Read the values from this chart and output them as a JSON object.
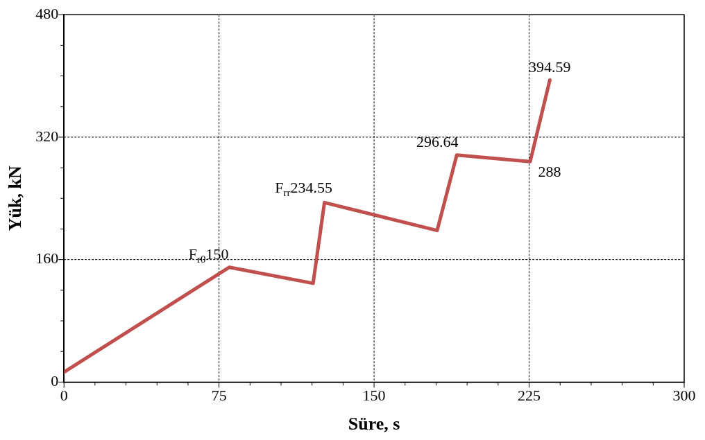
{
  "chart_data": {
    "type": "line",
    "xlabel": "Süre, s",
    "ylabel": "Yük, kN",
    "x": [
      0,
      80,
      120.5,
      126,
      180.5,
      190,
      225.5,
      235
    ],
    "series": [
      {
        "color": "#c0504d",
        "values": [
          13,
          150,
          129,
          234.55,
          198,
          296.64,
          288,
          394.59
        ]
      }
    ],
    "xlim": [
      0,
      300
    ],
    "ylim": [
      0,
      480
    ],
    "xticks": [
      0,
      {
        "value": 15,
        "label": null
      },
      {
        "value": 30,
        "label": null
      },
      {
        "value": 45,
        "label": null
      },
      {
        "value": 60,
        "label": null
      },
      75,
      {
        "value": 90,
        "label": null
      },
      {
        "value": 105,
        "label": null
      },
      {
        "value": 120,
        "label": null
      },
      {
        "value": 135,
        "label": null
      },
      150,
      {
        "value": 165,
        "label": null
      },
      {
        "value": 180,
        "label": null
      },
      {
        "value": 195,
        "label": null
      },
      {
        "value": 210,
        "label": null
      },
      225,
      {
        "value": 240,
        "label": null
      },
      {
        "value": 255,
        "label": null
      },
      {
        "value": 270,
        "label": null
      },
      {
        "value": 285,
        "label": null
      },
      300
    ],
    "yticks": [
      0,
      {
        "value": 40,
        "label": null
      },
      {
        "value": 80,
        "label": null
      },
      {
        "value": 120,
        "label": null
      },
      160,
      {
        "value": 200,
        "label": null
      },
      {
        "value": 240,
        "label": null
      },
      {
        "value": 280,
        "label": null
      },
      320,
      {
        "value": 360,
        "label": null
      },
      {
        "value": 400,
        "label": null
      },
      {
        "value": 440,
        "label": null
      },
      480
    ],
    "grid": true,
    "marker": "none",
    "line_style": "solid",
    "legend": false,
    "annotations": [
      {
        "text": "F$_{r0}$150",
        "x": 80,
        "y": 150
      },
      {
        "text": "F$_{rr}$234.55",
        "x": 126,
        "y": 234.55
      },
      {
        "text": "296.64",
        "x": 190,
        "y": 296.64
      },
      {
        "text": "288",
        "x": 225.5,
        "y": 288
      },
      {
        "text": "394.59",
        "x": 235,
        "y": 394.59
      }
    ]
  }
}
